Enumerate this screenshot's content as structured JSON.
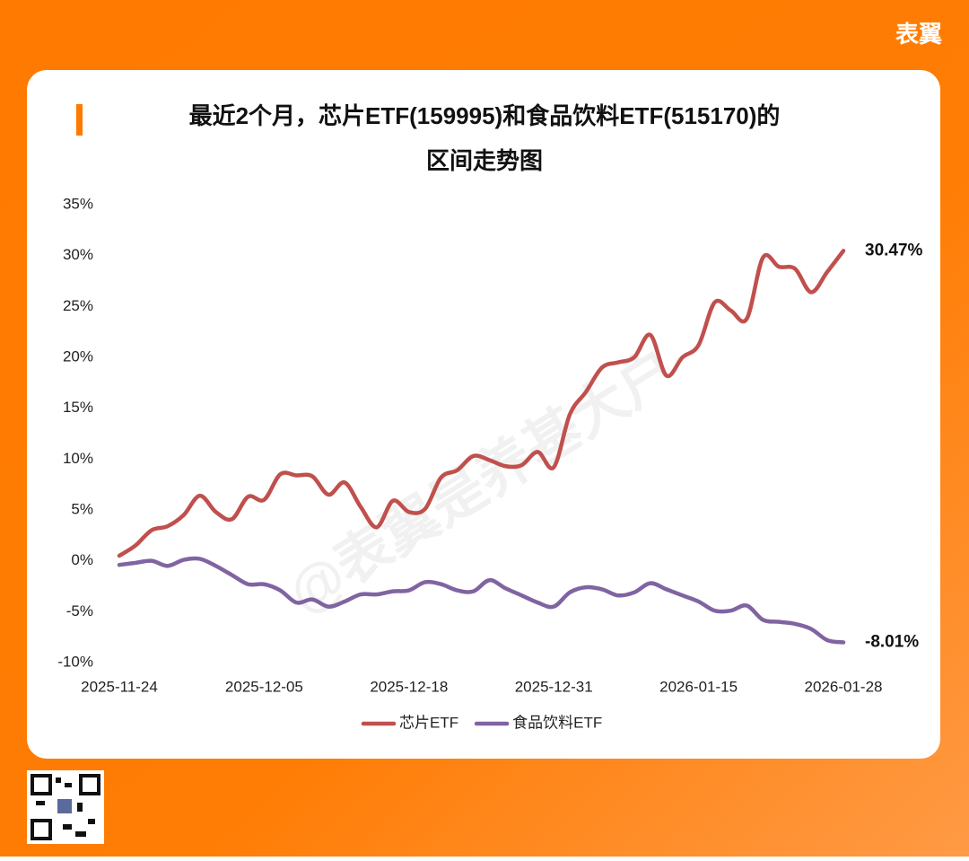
{
  "brand": "表翼",
  "watermark": "@表翼是养基大户",
  "chart_data": {
    "type": "line",
    "title": [
      "最近2个月，芯片ETF(159995)和食品饮料ETF(515170)的",
      "区间走势图"
    ],
    "categories": [
      "2025-11-24",
      null,
      null,
      null,
      null,
      null,
      null,
      null,
      null,
      "2025-12-05",
      null,
      null,
      null,
      null,
      null,
      null,
      null,
      null,
      "2025-12-18",
      null,
      null,
      null,
      null,
      null,
      null,
      null,
      null,
      "2025-12-31",
      null,
      null,
      null,
      null,
      null,
      null,
      null,
      null,
      "2026-01-15",
      null,
      null,
      null,
      null,
      null,
      null,
      null,
      null,
      "2026-01-28"
    ],
    "ylim": [
      -10,
      35
    ],
    "yticks": [
      {
        "value": -10,
        "label": "-10%"
      },
      {
        "value": -5,
        "label": "-5%"
      },
      {
        "value": 0,
        "label": "0%"
      },
      {
        "value": 5,
        "label": "5%"
      },
      {
        "value": 10,
        "label": "10%"
      },
      {
        "value": 15,
        "label": "15%"
      },
      {
        "value": 20,
        "label": "20%"
      },
      {
        "value": 25,
        "label": "25%"
      },
      {
        "value": 30,
        "label": "30%"
      },
      {
        "value": 35,
        "label": "35%"
      }
    ],
    "grid": false,
    "legend": "bottom",
    "series": [
      {
        "name": "芯片ETF",
        "color": "#c0504d",
        "values": [
          0.5,
          1.5,
          3.0,
          3.4,
          4.5,
          6.4,
          4.8,
          4.1,
          6.3,
          6.0,
          8.5,
          8.4,
          8.3,
          6.5,
          7.7,
          5.3,
          3.3,
          5.9,
          4.8,
          5.1,
          8.2,
          8.9,
          10.3,
          9.9,
          9.3,
          9.4,
          10.7,
          9.2,
          14.4,
          16.6,
          19.0,
          19.5,
          20.0,
          22.2,
          18.2,
          20.0,
          21.2,
          25.4,
          24.6,
          23.8,
          29.8,
          28.9,
          28.7,
          26.4,
          28.4,
          30.47
        ],
        "value_labels": [
          null,
          null,
          null,
          null,
          null,
          null,
          null,
          null,
          null,
          null,
          null,
          null,
          null,
          null,
          null,
          null,
          null,
          null,
          null,
          null,
          null,
          null,
          null,
          null,
          null,
          null,
          null,
          null,
          null,
          null,
          null,
          null,
          null,
          null,
          null,
          null,
          null,
          null,
          null,
          null,
          null,
          null,
          null,
          null,
          null,
          "30.47%"
        ]
      },
      {
        "name": "食品饮料ETF",
        "color": "#8064a2",
        "values": [
          -0.4,
          -0.2,
          0.0,
          -0.5,
          0.1,
          0.2,
          -0.5,
          -1.4,
          -2.3,
          -2.3,
          -2.9,
          -4.1,
          -3.8,
          -4.5,
          -4.0,
          -3.3,
          -3.3,
          -3.0,
          -2.9,
          -2.1,
          -2.3,
          -2.9,
          -3.0,
          -1.9,
          -2.7,
          -3.4,
          -4.1,
          -4.5,
          -3.1,
          -2.6,
          -2.8,
          -3.4,
          -3.1,
          -2.2,
          -2.8,
          -3.4,
          -4.0,
          -4.9,
          -4.9,
          -4.4,
          -5.8,
          -6.0,
          -6.2,
          -6.7,
          -7.8,
          -8.01
        ],
        "value_labels": [
          null,
          null,
          null,
          null,
          null,
          null,
          null,
          null,
          null,
          null,
          null,
          null,
          null,
          null,
          null,
          null,
          null,
          null,
          null,
          null,
          null,
          null,
          null,
          null,
          null,
          null,
          null,
          null,
          null,
          null,
          null,
          null,
          null,
          null,
          null,
          null,
          null,
          null,
          null,
          null,
          null,
          null,
          null,
          null,
          null,
          "-8.01%"
        ]
      }
    ]
  }
}
